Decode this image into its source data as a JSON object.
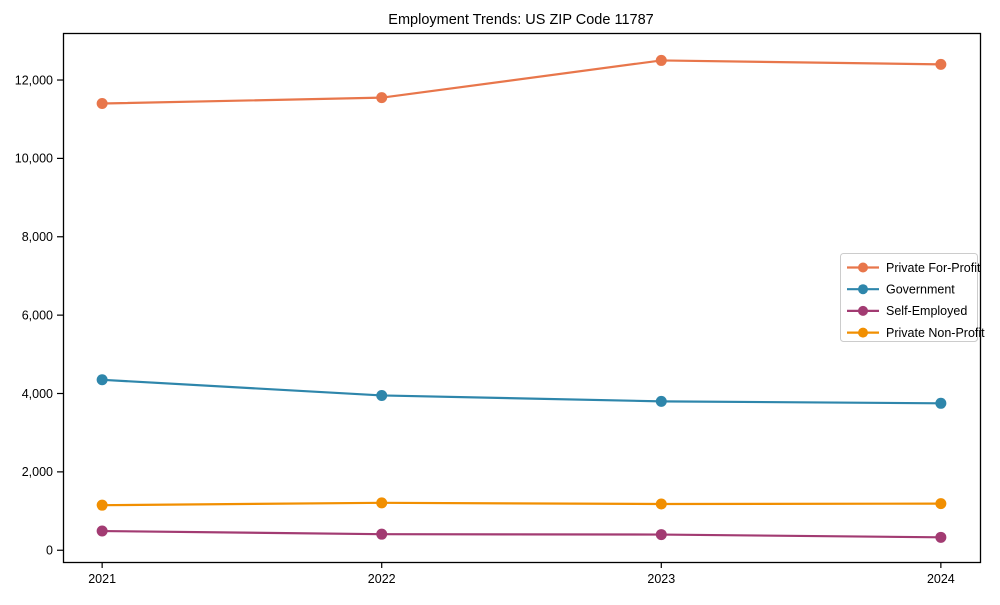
{
  "figure": {
    "background": "#ffffff",
    "axes_border_color": "#000000"
  },
  "chart_data": {
    "type": "line",
    "title": "Employment Trends: US ZIP Code 11787",
    "xlabel": "",
    "ylabel": "",
    "categories": [
      2021,
      2022,
      2023,
      2024
    ],
    "x_tick_labels": [
      "2021",
      "2022",
      "2023",
      "2024"
    ],
    "y_ticks": [
      0,
      2000,
      4000,
      6000,
      8000,
      10000,
      12000
    ],
    "y_tick_labels": [
      "0",
      "2,000",
      "4,000",
      "6,000",
      "8,000",
      "10,000",
      "12,000"
    ],
    "xlim": [
      2020.86,
      2024.14
    ],
    "ylim": [
      -300,
      13200
    ],
    "grid": false,
    "legend": {
      "position": "center-right",
      "border_color": "#cccccc",
      "background": "#ffffff",
      "entries": [
        "Private For-Profit",
        "Government",
        "Self-Employed",
        "Private Non-Profit"
      ]
    },
    "series": [
      {
        "name": "Private For-Profit",
        "color": "#E8764B",
        "values": [
          11400,
          11550,
          12500,
          12400
        ]
      },
      {
        "name": "Government",
        "color": "#2E86AB",
        "values": [
          4350,
          3950,
          3800,
          3750
        ]
      },
      {
        "name": "Self-Employed",
        "color": "#A23B72",
        "values": [
          490,
          410,
          400,
          330
        ]
      },
      {
        "name": "Private Non-Profit",
        "color": "#F18F01",
        "values": [
          1150,
          1210,
          1180,
          1190
        ]
      }
    ]
  }
}
